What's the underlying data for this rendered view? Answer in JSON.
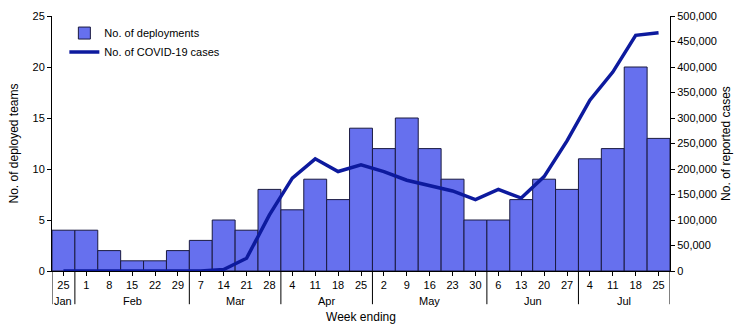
{
  "chart_data": {
    "type": "bar",
    "categories": [
      "25",
      "1",
      "8",
      "15",
      "22",
      "29",
      "7",
      "14",
      "21",
      "28",
      "4",
      "11",
      "18",
      "25",
      "2",
      "9",
      "16",
      "23",
      "30",
      "6",
      "13",
      "20",
      "27",
      "4",
      "11",
      "18",
      "25"
    ],
    "month_groups": [
      {
        "label": "Jan",
        "count": 1
      },
      {
        "label": "Feb",
        "count": 5
      },
      {
        "label": "Mar",
        "count": 4
      },
      {
        "label": "Apr",
        "count": 4
      },
      {
        "label": "May",
        "count": 5
      },
      {
        "label": "Jun",
        "count": 4
      },
      {
        "label": "Jul",
        "count": 4
      }
    ],
    "x_label": "Week ending",
    "y_label": "No. of deployed teams",
    "y2_label": "No. of reported cases",
    "series": [
      {
        "name": "No. of deployments",
        "type": "bar",
        "color": "#6670ee",
        "values": [
          4,
          4,
          2,
          1,
          1,
          2,
          3,
          5,
          4,
          8,
          6,
          9,
          7,
          14,
          12,
          15,
          12,
          9,
          5,
          5,
          7,
          9,
          8,
          11,
          12,
          20,
          13
        ]
      },
      {
        "name": "No. of COVID-19 cases",
        "type": "line",
        "axis": "y2",
        "color": "#0d1a9e",
        "values": [
          0,
          0,
          0,
          0,
          0,
          0,
          0,
          3000,
          25000,
          110000,
          182000,
          220000,
          195000,
          208000,
          195000,
          178000,
          167000,
          157000,
          140000,
          160000,
          143000,
          185000,
          255000,
          335000,
          390000,
          462000,
          467000
        ]
      }
    ],
    "ylim": [
      0,
      25
    ],
    "yticks": [
      0,
      5,
      10,
      15,
      20,
      25
    ],
    "y2lim": [
      0,
      500000
    ],
    "y2ticks": [
      0,
      {
        "value": 50000,
        "label": "50,000"
      },
      {
        "value": 100000,
        "label": "100,000"
      },
      {
        "value": 150000,
        "label": "150,000"
      },
      {
        "value": 200000,
        "label": "200,000"
      },
      {
        "value": 250000,
        "label": "250,000"
      },
      {
        "value": 300000,
        "label": "300,000"
      },
      {
        "value": 350000,
        "label": "350,000"
      },
      {
        "value": 400000,
        "label": "400,000"
      },
      {
        "value": 450000,
        "label": "450,000"
      },
      {
        "value": 500000,
        "label": "500,000"
      }
    ],
    "legend": "upper left",
    "grid": false
  }
}
